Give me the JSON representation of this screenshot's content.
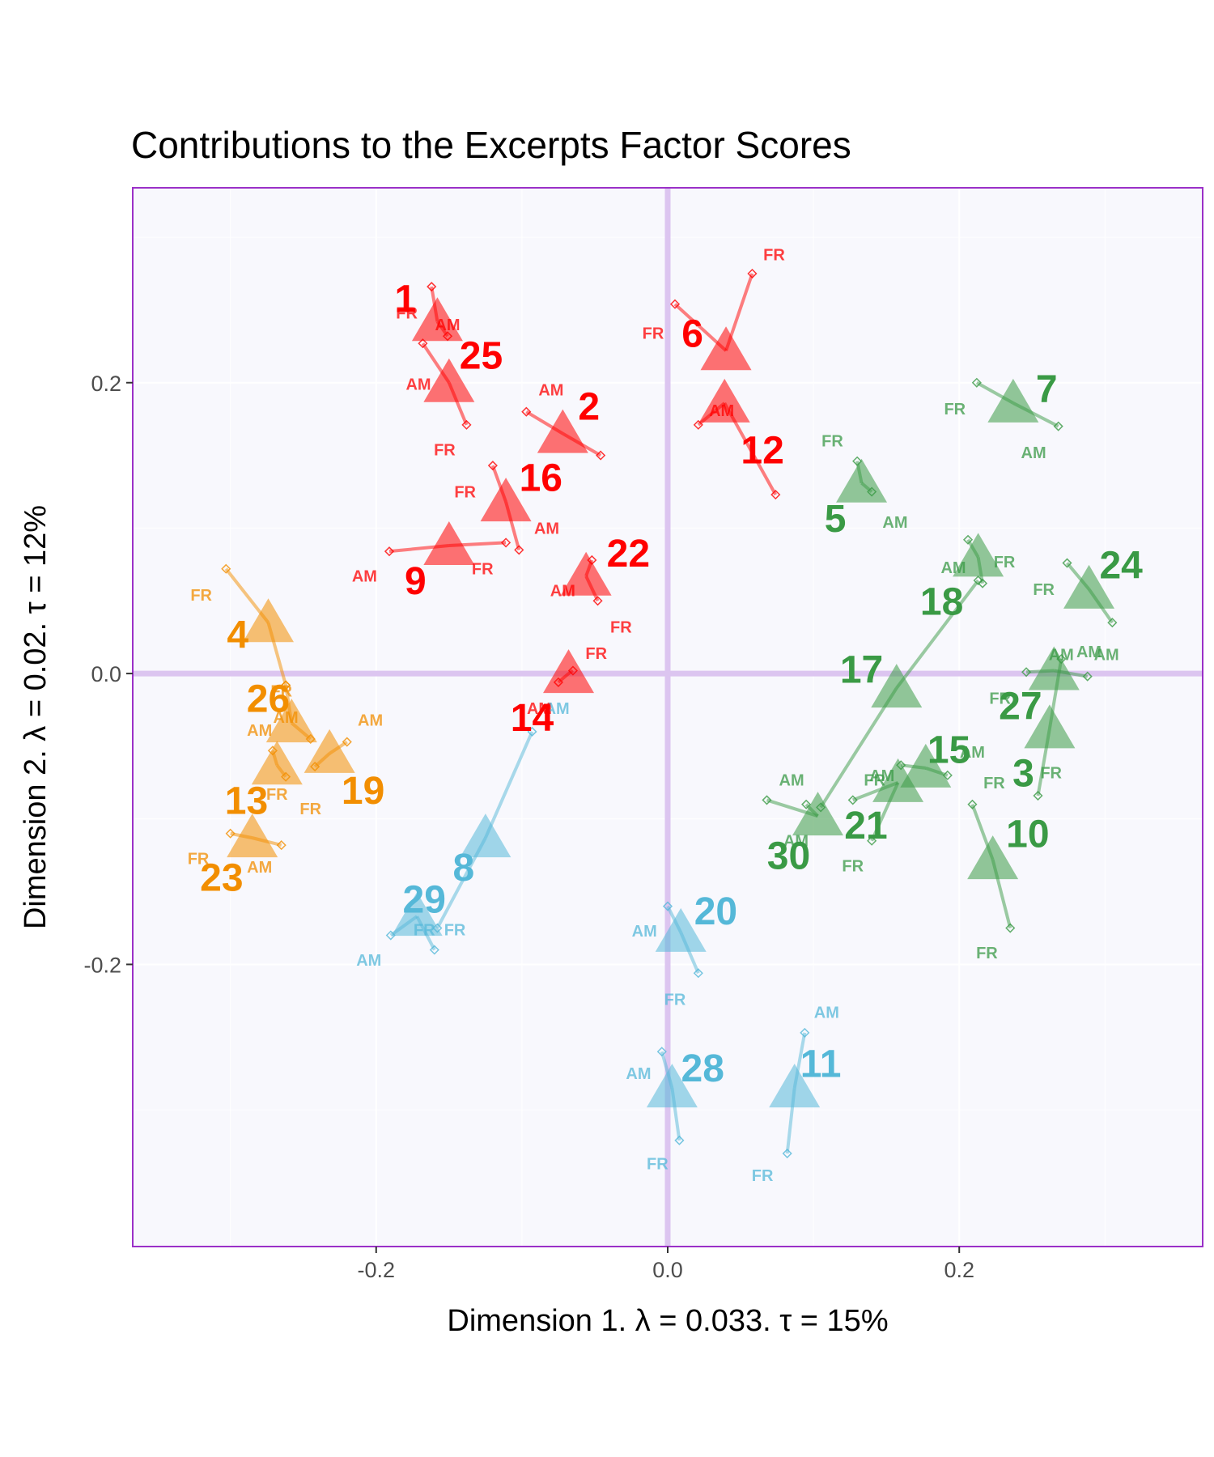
{
  "chart_data": {
    "type": "scatter",
    "title": "Contributions to the Excerpts Factor Scores",
    "xlabel": "Dimension 1.   λ = 0.033.  τ = 15%",
    "ylabel": "Dimension 2.   λ = 0.02.  τ = 12%",
    "xlim": [
      -0.367,
      0.367
    ],
    "ylim": [
      -0.394,
      0.334
    ],
    "x_ticks": [
      {
        "value": -0.2,
        "label": "-0.2"
      },
      {
        "value": 0.0,
        "label": "0.0"
      },
      {
        "value": 0.2,
        "label": "0.2"
      }
    ],
    "y_ticks": [
      {
        "value": -0.2,
        "label": "-0.2"
      },
      {
        "value": 0.0,
        "label": "0.0"
      },
      {
        "value": 0.2,
        "label": "0.2"
      }
    ],
    "grid": true,
    "colors": {
      "red": "#ff0000",
      "green": "#3a9a45",
      "orange": "#f28e00",
      "blue": "#55b8d8",
      "frame": "#9b30c8",
      "zero_line": "#dcc5f0",
      "panel": "#f8f8fd"
    },
    "judge_labels": {
      "am": "AM",
      "fr": "FR"
    },
    "excerpts": [
      {
        "id": "1",
        "group": "red",
        "x": -0.158,
        "y": 0.242,
        "am": [
          -0.162,
          0.266
        ],
        "fr": [
          -0.151,
          0.232
        ],
        "label_pos": [
          -0.18,
          0.258
        ],
        "am_lab": [
          -0.151,
          0.24
        ],
        "fr_lab": [
          -0.179,
          0.248
        ]
      },
      {
        "id": "25",
        "group": "red",
        "x": -0.15,
        "y": 0.2,
        "am": [
          -0.168,
          0.227
        ],
        "fr": [
          -0.138,
          0.171
        ],
        "label_pos": [
          -0.128,
          0.219
        ],
        "am_lab": [
          -0.171,
          0.199
        ],
        "fr_lab": [
          -0.153,
          0.154
        ]
      },
      {
        "id": "2",
        "group": "red",
        "x": -0.072,
        "y": 0.165,
        "am": [
          -0.097,
          0.18
        ],
        "fr": [
          -0.046,
          0.15
        ],
        "label_pos": [
          -0.054,
          0.184
        ],
        "am_lab": [
          -0.08,
          0.195
        ],
        "fr_lab": null
      },
      {
        "id": "16",
        "group": "red",
        "x": -0.111,
        "y": 0.118,
        "am": [
          -0.102,
          0.085
        ],
        "fr": [
          -0.12,
          0.143
        ],
        "label_pos": [
          -0.087,
          0.135
        ],
        "am_lab": [
          -0.083,
          0.1
        ],
        "fr_lab": [
          -0.139,
          0.125
        ]
      },
      {
        "id": "9",
        "group": "red",
        "x": -0.15,
        "y": 0.088,
        "am": [
          -0.191,
          0.084
        ],
        "fr": [
          -0.111,
          0.09
        ],
        "label_pos": [
          -0.173,
          0.064
        ],
        "am_lab": [
          -0.208,
          0.067
        ],
        "fr_lab": [
          -0.127,
          0.072
        ]
      },
      {
        "id": "22",
        "group": "red",
        "x": -0.056,
        "y": 0.067,
        "am": [
          -0.052,
          0.078
        ],
        "fr": [
          -0.048,
          0.05
        ],
        "label_pos": [
          -0.027,
          0.083
        ],
        "am_lab": [
          -0.072,
          0.057
        ],
        "fr_lab": [
          -0.032,
          0.032
        ]
      },
      {
        "id": "14",
        "group": "red",
        "x": -0.068,
        "y": 0.0,
        "am": [
          -0.075,
          -0.006
        ],
        "fr": [
          -0.065,
          0.002
        ],
        "label_pos": [
          -0.093,
          -0.03
        ],
        "am_lab": [
          -0.088,
          -0.024
        ],
        "fr_lab": [
          -0.049,
          0.014
        ]
      },
      {
        "id": "6",
        "group": "red",
        "x": 0.04,
        "y": 0.222,
        "am": [
          0.005,
          0.254
        ],
        "fr": [
          0.058,
          0.275
        ],
        "label_pos": [
          0.017,
          0.234
        ],
        "am_lab": null,
        "fr_lab": [
          0.073,
          0.288
        ]
      },
      {
        "id": "12",
        "group": "red",
        "x": 0.039,
        "y": 0.186,
        "am": [
          0.021,
          0.171
        ],
        "fr": [
          0.074,
          0.123
        ],
        "label_pos": [
          0.065,
          0.154
        ],
        "am_lab": [
          0.037,
          0.181
        ],
        "fr_lab": [
          -0.01,
          0.234
        ]
      },
      {
        "id": "5",
        "group": "green",
        "x": 0.133,
        "y": 0.131,
        "am": [
          0.14,
          0.125
        ],
        "fr": [
          0.13,
          0.146
        ],
        "label_pos": [
          0.115,
          0.107
        ],
        "am_lab": [
          0.156,
          0.104
        ],
        "fr_lab": [
          0.113,
          0.16
        ]
      },
      {
        "id": "7",
        "group": "green",
        "x": 0.237,
        "y": 0.186,
        "am": [
          0.268,
          0.17
        ],
        "fr": [
          0.212,
          0.2
        ],
        "label_pos": [
          0.26,
          0.196
        ],
        "am_lab": [
          0.251,
          0.152
        ],
        "fr_lab": [
          0.197,
          0.182
        ]
      },
      {
        "id": "24",
        "group": "green",
        "x": 0.289,
        "y": 0.058,
        "am": [
          0.305,
          0.035
        ],
        "fr": [
          0.274,
          0.076
        ],
        "label_pos": [
          0.311,
          0.075
        ],
        "am_lab": [
          0.301,
          0.013
        ],
        "fr_lab": [
          0.258,
          0.058
        ]
      },
      {
        "id": "18",
        "group": "green",
        "x": 0.213,
        "y": 0.08,
        "am": [
          0.206,
          0.092
        ],
        "fr": [
          0.216,
          0.062
        ],
        "label_pos": [
          0.188,
          0.05
        ],
        "am_lab": [
          0.196,
          0.073
        ],
        "fr_lab": [
          0.231,
          0.077
        ]
      },
      {
        "id": "17",
        "group": "green",
        "x": 0.157,
        "y": -0.01,
        "am": [
          0.213,
          0.064
        ],
        "fr": [
          0.105,
          -0.092
        ],
        "label_pos": [
          0.133,
          0.003
        ],
        "am_lab": null,
        "fr_lab": null
      },
      {
        "id": "27",
        "group": "green",
        "x": 0.265,
        "y": 0.002,
        "am": [
          0.246,
          0.001
        ],
        "fr": [
          0.288,
          -0.002
        ],
        "label_pos": [
          0.242,
          -0.022
        ],
        "am_lab": [
          0.289,
          0.015
        ],
        "fr_lab": [
          0.228,
          -0.017
        ]
      },
      {
        "id": "3",
        "group": "green",
        "x": 0.262,
        "y": -0.038,
        "am": [
          0.27,
          0.01
        ],
        "fr": [
          0.254,
          -0.084
        ],
        "label_pos": [
          0.244,
          -0.068
        ],
        "am_lab": [
          0.27,
          0.013
        ],
        "fr_lab": [
          0.263,
          -0.068
        ]
      },
      {
        "id": "15",
        "group": "green",
        "x": 0.177,
        "y": -0.065,
        "am": [
          0.192,
          -0.07
        ],
        "fr": [
          0.16,
          -0.063
        ],
        "label_pos": [
          0.193,
          -0.052
        ],
        "am_lab": [
          0.209,
          -0.054
        ],
        "fr_lab": [
          0.224,
          -0.075
        ]
      },
      {
        "id": "21",
        "group": "green",
        "x": 0.158,
        "y": -0.075,
        "am": [
          0.14,
          -0.115
        ],
        "fr": [
          0.127,
          -0.087
        ],
        "label_pos": [
          0.136,
          -0.104
        ],
        "am_lab": [
          0.147,
          -0.07
        ],
        "fr_lab": [
          0.127,
          -0.132
        ]
      },
      {
        "id": "30",
        "group": "green",
        "x": 0.103,
        "y": -0.098,
        "am": [
          0.068,
          -0.087
        ],
        "fr": [
          0.095,
          -0.09
        ],
        "label_pos": [
          0.083,
          -0.125
        ],
        "am_lab": [
          0.085,
          -0.073
        ],
        "fr_lab": [
          0.142,
          -0.073
        ]
      },
      {
        "id": "10",
        "group": "green",
        "x": 0.223,
        "y": -0.128,
        "am": [
          0.209,
          -0.09
        ],
        "fr": [
          0.235,
          -0.175
        ],
        "label_pos": [
          0.247,
          -0.11
        ],
        "am_lab": [
          0.088,
          -0.115
        ],
        "fr_lab": [
          0.219,
          -0.192
        ]
      },
      {
        "id": "4",
        "group": "orange",
        "x": -0.274,
        "y": 0.035,
        "am": [
          -0.262,
          -0.008
        ],
        "fr": [
          -0.303,
          0.072
        ],
        "label_pos": [
          -0.295,
          0.027
        ],
        "am_lab": null,
        "fr_lab": [
          -0.32,
          0.054
        ]
      },
      {
        "id": "26",
        "group": "orange",
        "x": -0.258,
        "y": -0.034,
        "am": [
          -0.245,
          -0.045
        ],
        "fr": [
          -0.262,
          -0.008
        ],
        "label_pos": [
          -0.274,
          -0.017
        ],
        "am_lab": [
          -0.262,
          -0.03
        ],
        "fr_lab": [
          -0.265,
          -0.012
        ]
      },
      {
        "id": "19",
        "group": "orange",
        "x": -0.232,
        "y": -0.055,
        "am": [
          -0.22,
          -0.047
        ],
        "fr": [
          -0.242,
          -0.064
        ],
        "label_pos": [
          -0.209,
          -0.08
        ],
        "am_lab": [
          -0.204,
          -0.032
        ],
        "fr_lab": [
          -0.245,
          -0.093
        ]
      },
      {
        "id": "13",
        "group": "orange",
        "x": -0.268,
        "y": -0.063,
        "am": [
          -0.271,
          -0.053
        ],
        "fr": [
          -0.262,
          -0.071
        ],
        "label_pos": [
          -0.289,
          -0.087
        ],
        "am_lab": [
          -0.28,
          -0.039
        ],
        "fr_lab": [
          -0.268,
          -0.083
        ]
      },
      {
        "id": "23",
        "group": "orange",
        "x": -0.285,
        "y": -0.113,
        "am": [
          -0.3,
          -0.11
        ],
        "fr": [
          -0.265,
          -0.118
        ],
        "label_pos": [
          -0.306,
          -0.14
        ],
        "am_lab": [
          -0.28,
          -0.133
        ],
        "fr_lab": [
          -0.322,
          -0.127
        ]
      },
      {
        "id": "8",
        "group": "blue",
        "x": -0.125,
        "y": -0.113,
        "am": [
          -0.093,
          -0.04
        ],
        "fr": [
          -0.158,
          -0.175
        ],
        "label_pos": [
          -0.14,
          -0.133
        ],
        "am_lab": [
          -0.076,
          -0.024
        ],
        "fr_lab": [
          -0.146,
          -0.176
        ]
      },
      {
        "id": "29",
        "group": "blue",
        "x": -0.172,
        "y": -0.167,
        "am": [
          -0.19,
          -0.18
        ],
        "fr": [
          -0.16,
          -0.19
        ],
        "label_pos": [
          -0.167,
          -0.155
        ],
        "am_lab": [
          -0.205,
          -0.197
        ],
        "fr_lab": [
          -0.167,
          -0.176
        ]
      },
      {
        "id": "20",
        "group": "blue",
        "x": 0.009,
        "y": -0.178,
        "am": [
          0.0,
          -0.16
        ],
        "fr": [
          0.021,
          -0.206
        ],
        "label_pos": [
          0.033,
          -0.163
        ],
        "am_lab": [
          -0.016,
          -0.177
        ],
        "fr_lab": [
          0.005,
          -0.224
        ]
      },
      {
        "id": "28",
        "group": "blue",
        "x": 0.003,
        "y": -0.285,
        "am": [
          -0.004,
          -0.26
        ],
        "fr": [
          0.008,
          -0.321
        ],
        "label_pos": [
          0.024,
          -0.271
        ],
        "am_lab": [
          -0.02,
          -0.275
        ],
        "fr_lab": [
          -0.007,
          -0.337
        ]
      },
      {
        "id": "11",
        "group": "blue",
        "x": 0.087,
        "y": -0.285,
        "am": [
          0.094,
          -0.247
        ],
        "fr": [
          0.082,
          -0.33
        ],
        "label_pos": [
          0.105,
          -0.268
        ],
        "am_lab": [
          0.109,
          -0.233
        ],
        "fr_lab": [
          0.065,
          -0.345
        ]
      }
    ]
  }
}
